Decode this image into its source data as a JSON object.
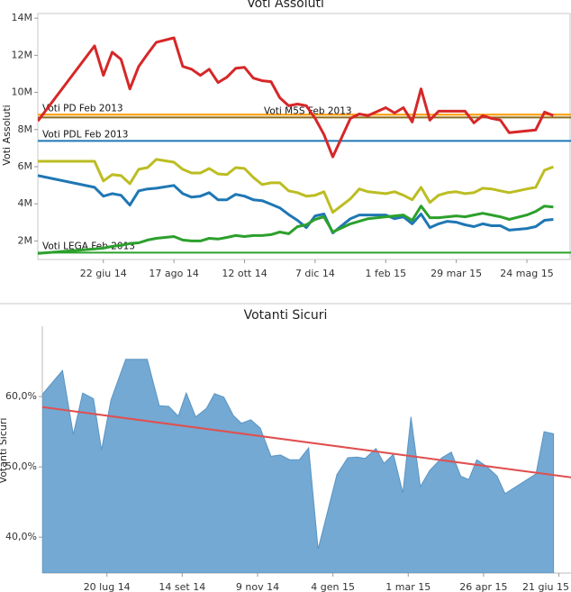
{
  "chart_data": [
    {
      "type": "line",
      "title": "Voti Assoluti",
      "y_label": "Voti Assoluti",
      "x": [
        "2014-05-01",
        "2014-06-15",
        "2014-06-22",
        "2014-06-29",
        "2014-07-06",
        "2014-07-13",
        "2014-07-20",
        "2014-07-27",
        "2014-08-03",
        "2014-08-17",
        "2014-08-24",
        "2014-08-31",
        "2014-09-07",
        "2014-09-14",
        "2014-09-21",
        "2014-09-28",
        "2014-10-05",
        "2014-10-12",
        "2014-10-19",
        "2014-10-26",
        "2014-11-02",
        "2014-11-09",
        "2014-11-16",
        "2014-11-23",
        "2014-11-30",
        "2014-12-07",
        "2014-12-14",
        "2014-12-21",
        "2015-01-04",
        "2015-01-11",
        "2015-01-18",
        "2015-02-01",
        "2015-02-08",
        "2015-02-15",
        "2015-02-22",
        "2015-03-01",
        "2015-03-08",
        "2015-03-15",
        "2015-03-22",
        "2015-03-29",
        "2015-04-05",
        "2015-04-12",
        "2015-04-19",
        "2015-04-26",
        "2015-05-03",
        "2015-05-10",
        "2015-05-24",
        "2015-05-31",
        "2015-06-07",
        "2015-06-14"
      ],
      "series": [
        {
          "color": "#d62728",
          "values": [
            8460000,
            12510000,
            10920000,
            12170000,
            11780000,
            10190000,
            11400000,
            12070000,
            12700000,
            12940000,
            11400000,
            11250000,
            10920000,
            11250000,
            10530000,
            10820000,
            11300000,
            11350000,
            10770000,
            10630000,
            10580000,
            9710000,
            9280000,
            9370000,
            9280000,
            8600000,
            7730000,
            6530000,
            8600000,
            8840000,
            8750000,
            9180000,
            8890000,
            9180000,
            8410000,
            10190000,
            8510000,
            8990000,
            8990000,
            8990000,
            8990000,
            8360000,
            8750000,
            8600000,
            8510000,
            7830000,
            7930000,
            7980000,
            8940000,
            8750000
          ]
        },
        {
          "color": "#bcbd22",
          "values": [
            6290000,
            6290000,
            5230000,
            5570000,
            5520000,
            5080000,
            5860000,
            5950000,
            6390000,
            6240000,
            5860000,
            5660000,
            5660000,
            5900000,
            5610000,
            5570000,
            5950000,
            5900000,
            5420000,
            5040000,
            5130000,
            5130000,
            4700000,
            4600000,
            4410000,
            4460000,
            4650000,
            3540000,
            4270000,
            4800000,
            4650000,
            4550000,
            4650000,
            4460000,
            4220000,
            4890000,
            4070000,
            4460000,
            4600000,
            4650000,
            4550000,
            4600000,
            4840000,
            4800000,
            4700000,
            4600000,
            4800000,
            4890000,
            5810000,
            5990000
          ]
        },
        {
          "color": "#1f77b4",
          "values": [
            5520000,
            4890000,
            4410000,
            4550000,
            4460000,
            3930000,
            4700000,
            4800000,
            4840000,
            4990000,
            4550000,
            4360000,
            4410000,
            4600000,
            4220000,
            4220000,
            4510000,
            4410000,
            4220000,
            4170000,
            3980000,
            3780000,
            3420000,
            3110000,
            2720000,
            3350000,
            3450000,
            2430000,
            3200000,
            3400000,
            3400000,
            3400000,
            3200000,
            3300000,
            2920000,
            3450000,
            2720000,
            2920000,
            3060000,
            3010000,
            2870000,
            2770000,
            2920000,
            2820000,
            2820000,
            2580000,
            2670000,
            2770000,
            3110000,
            3160000
          ]
        },
        {
          "color": "#2ca02c",
          "values": [
            1330000,
            1570000,
            1610000,
            1710000,
            1760000,
            1860000,
            1900000,
            2050000,
            2140000,
            2240000,
            2050000,
            2000000,
            2000000,
            2140000,
            2100000,
            2190000,
            2290000,
            2240000,
            2290000,
            2290000,
            2340000,
            2480000,
            2390000,
            2770000,
            2870000,
            3160000,
            3300000,
            2480000,
            2920000,
            3060000,
            3200000,
            3300000,
            3350000,
            3400000,
            3110000,
            3880000,
            3250000,
            3250000,
            3300000,
            3350000,
            3300000,
            3400000,
            3490000,
            3400000,
            3300000,
            3160000,
            3400000,
            3590000,
            3880000,
            3830000
          ]
        }
      ],
      "reference_lines": [
        {
          "label": "Voti PD Feb 2013",
          "value": 8800000,
          "color": "#ff9900"
        },
        {
          "label": "Voti M5S Feb 2013",
          "value": 8650000,
          "color": "#8c6d1f"
        },
        {
          "label": "Voti PDL Feb 2013",
          "value": 7390000,
          "color": "#1f77b4"
        },
        {
          "label": "Voti LEGA Feb 2013",
          "value": 1370000,
          "color": "#2ca02c"
        }
      ],
      "xlim": [
        "2014-05-01",
        "2015-06-28"
      ],
      "ylim": [
        1000000,
        14250000
      ],
      "xticks": [
        {
          "value": "2014-06-22",
          "label": "22 giu 14"
        },
        {
          "value": "2014-08-17",
          "label": "17 ago 14"
        },
        {
          "value": "2014-10-12",
          "label": "12 ott 14"
        },
        {
          "value": "2014-12-07",
          "label": "7 dic 14"
        },
        {
          "value": "2015-02-01",
          "label": "1 feb 15"
        },
        {
          "value": "2015-03-29",
          "label": "29 mar 15"
        },
        {
          "value": "2015-05-24",
          "label": "24 mag 15"
        }
      ],
      "yticks": [
        {
          "value": 2000000,
          "label": "2M"
        },
        {
          "value": 4000000,
          "label": "4M"
        },
        {
          "value": 6000000,
          "label": "6M"
        },
        {
          "value": 8000000,
          "label": "8M"
        },
        {
          "value": 10000000,
          "label": "10M"
        },
        {
          "value": 12000000,
          "label": "12M"
        },
        {
          "value": 14000000,
          "label": "14M"
        }
      ]
    },
    {
      "type": "area",
      "title": "Votanti Sicuri",
      "y_label": "Votanti Sicuri",
      "color": "#73a9d3",
      "x": [
        "2014-06-02",
        "2014-06-17",
        "2014-06-25",
        "2014-07-02",
        "2014-07-10",
        "2014-07-16",
        "2014-07-23",
        "2014-08-03",
        "2014-08-19",
        "2014-08-28",
        "2014-09-04",
        "2014-09-11",
        "2014-09-17",
        "2014-09-24",
        "2014-10-02",
        "2014-10-08",
        "2014-10-15",
        "2014-10-22",
        "2014-10-28",
        "2014-11-04",
        "2014-11-11",
        "2014-11-19",
        "2014-11-26",
        "2014-12-03",
        "2014-12-10",
        "2014-12-17",
        "2014-12-24",
        "2015-01-07",
        "2015-01-15",
        "2015-01-22",
        "2015-01-28",
        "2015-02-05",
        "2015-02-11",
        "2015-02-18",
        "2015-02-25",
        "2015-03-03",
        "2015-03-10",
        "2015-03-17",
        "2015-03-26",
        "2015-04-02",
        "2015-04-09",
        "2015-04-15",
        "2015-04-21",
        "2015-04-28",
        "2015-05-06",
        "2015-05-12",
        "2015-06-04",
        "2015-06-10",
        "2015-06-17"
      ],
      "values": [
        60.3,
        63.7,
        54.6,
        60.5,
        59.7,
        52.4,
        59.5,
        65.3,
        65.3,
        58.7,
        58.6,
        57.2,
        60.5,
        57.1,
        58.3,
        60.4,
        59.9,
        57.3,
        56.2,
        56.7,
        55.5,
        51.5,
        51.7,
        51.0,
        51.0,
        52.7,
        38.3,
        48.9,
        51.3,
        51.4,
        51.2,
        52.6,
        50.5,
        51.8,
        46.3,
        57.1,
        47.2,
        49.5,
        51.3,
        52.1,
        48.7,
        48.2,
        51.0,
        50.1,
        48.7,
        46.2,
        49.0,
        55.0,
        54.7
      ],
      "trend": {
        "color": "#e05050",
        "x": [
          "2014-06-02",
          "2015-06-30"
        ],
        "values": [
          58.5,
          48.5
        ]
      },
      "xlim": [
        "2014-06-02",
        "2015-06-30"
      ],
      "ylim": [
        34.9,
        70.0
      ],
      "xticks": [
        {
          "value": "2014-07-20",
          "label": "20 lug 14"
        },
        {
          "value": "2014-09-14",
          "label": "14 set 14"
        },
        {
          "value": "2014-11-09",
          "label": "9 nov 14"
        },
        {
          "value": "2015-01-04",
          "label": "4 gen 15"
        },
        {
          "value": "2015-03-01",
          "label": "1 mar 15"
        },
        {
          "value": "2015-04-26",
          "label": "26 apr 15"
        },
        {
          "value": "2015-06-21",
          "label": "21 giu 15"
        }
      ],
      "yticks": [
        {
          "value": 40,
          "label": "40,0%"
        },
        {
          "value": 50,
          "label": "50,0%"
        },
        {
          "value": 60,
          "label": "60,0%"
        }
      ]
    }
  ]
}
